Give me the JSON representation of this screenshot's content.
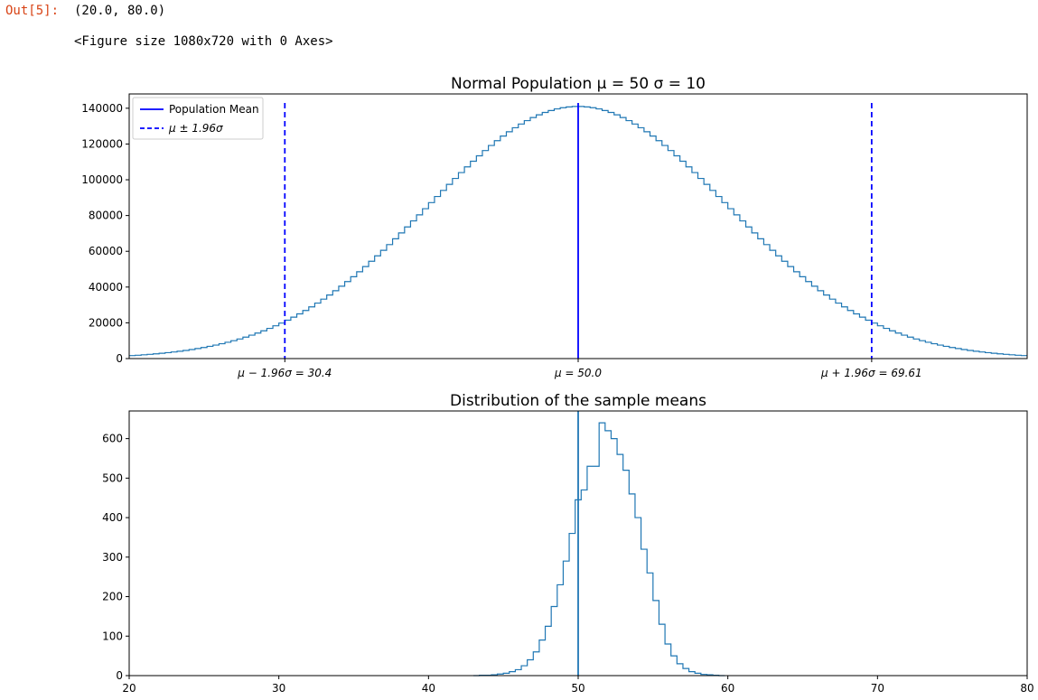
{
  "cell": {
    "prompt": "Out[5]:",
    "value": "(20.0, 80.0)",
    "figure_text": "<Figure size 1080x720 with 0 Axes>"
  },
  "colors": {
    "hist": "#1f77b4",
    "mean_line": "#0000ff",
    "axis": "#000000"
  },
  "chart_data": [
    {
      "type": "step",
      "title": "Normal Population μ = 50 σ = 10",
      "xlim": [
        20,
        80
      ],
      "ylim": [
        0,
        148000
      ],
      "yticks": [
        0,
        20000,
        40000,
        60000,
        80000,
        100000,
        120000,
        140000
      ],
      "xticks": [
        {
          "value": 30.4,
          "label": "μ − 1.96σ = 30.4"
        },
        {
          "value": 50.0,
          "label": "μ = 50.0"
        },
        {
          "value": 69.61,
          "label": "μ + 1.96σ = 69.61"
        }
      ],
      "population": {
        "mean": 50,
        "sd": 10,
        "peak": 141000,
        "bin_width": 0.4
      },
      "vlines": [
        {
          "x": 50.0,
          "style": "solid",
          "legend": "Population Mean"
        },
        {
          "x": 30.4,
          "style": "dashed",
          "legend": "μ ± 1.96σ"
        },
        {
          "x": 69.61,
          "style": "dashed",
          "legend": ""
        }
      ],
      "legend": {
        "placement": "upper-left",
        "entries": [
          "Population Mean",
          "μ ± 1.96σ"
        ]
      }
    },
    {
      "type": "step",
      "title": "Distribution of the sample means",
      "xlim": [
        20,
        80
      ],
      "ylim": [
        0,
        670
      ],
      "yticks": [
        0,
        100,
        200,
        300,
        400,
        500,
        600
      ],
      "xticks": [
        20,
        30,
        40,
        50,
        60,
        70,
        80
      ],
      "bin_start": 43.0,
      "bin_width": 0.4,
      "values": [
        0,
        1,
        1,
        2,
        4,
        6,
        10,
        15,
        25,
        40,
        60,
        90,
        125,
        175,
        230,
        290,
        360,
        445,
        470,
        530,
        530,
        640,
        620,
        600,
        560,
        520,
        460,
        400,
        320,
        260,
        190,
        130,
        80,
        50,
        30,
        18,
        10,
        6,
        3,
        2,
        1,
        0
      ],
      "vline": {
        "x": 50.0
      }
    }
  ]
}
